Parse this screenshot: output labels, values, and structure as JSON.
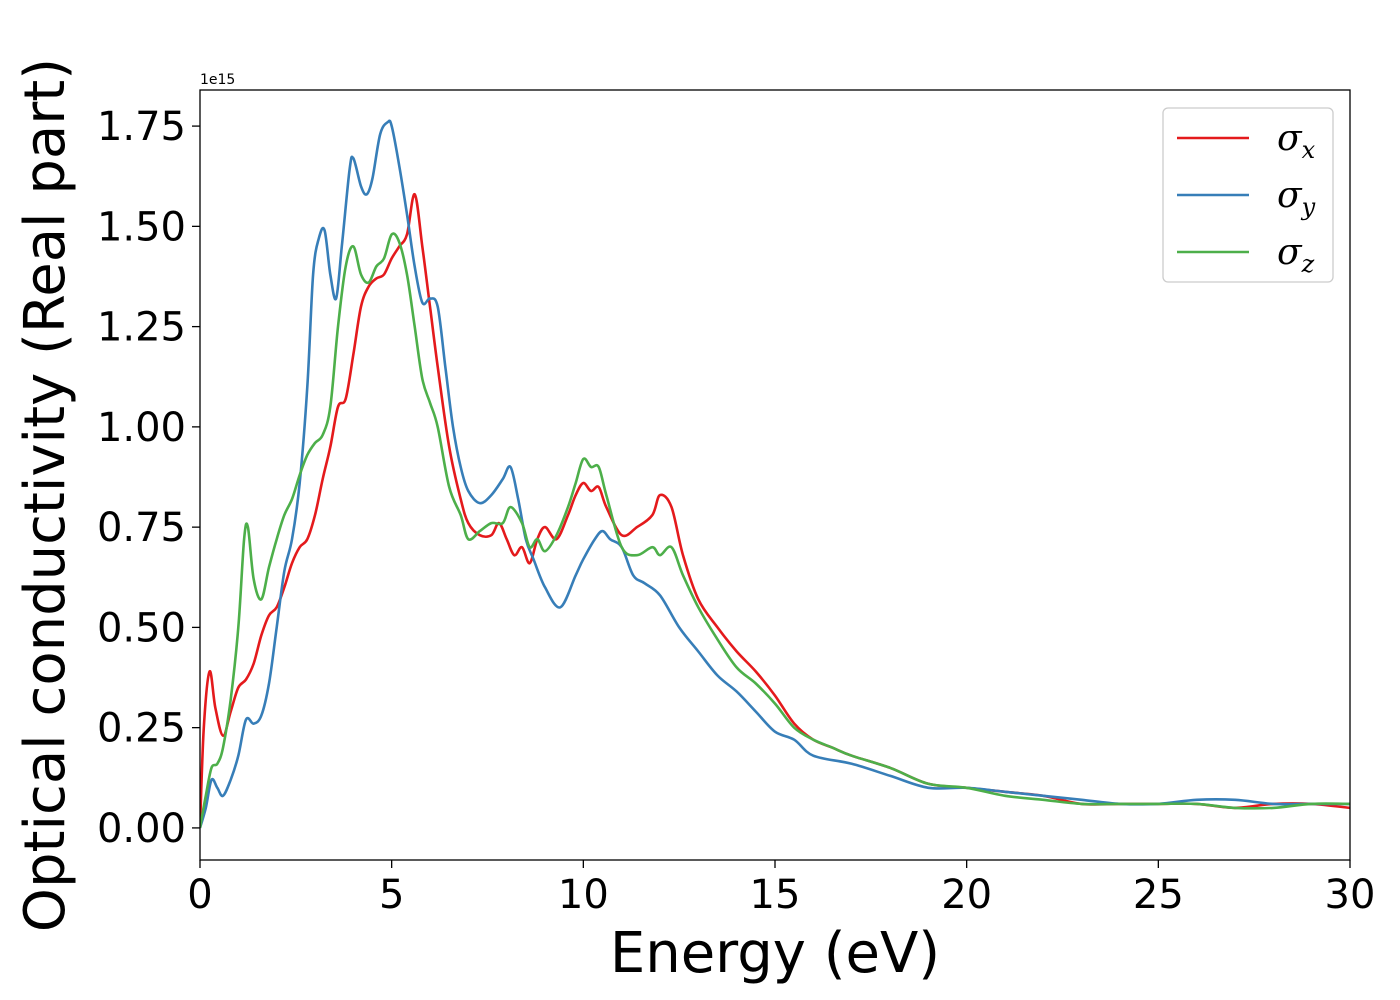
{
  "chart_data": {
    "type": "line",
    "xlabel": "Energy (eV)",
    "ylabel": "Optical conductivity (Real part)",
    "y_offset_label": "1e15",
    "xlim": [
      0,
      30
    ],
    "ylim": [
      -0.08,
      1.84
    ],
    "grid": false,
    "legend_position": "top-right",
    "x_ticks": [
      0,
      5,
      10,
      15,
      20,
      25,
      30
    ],
    "x_tick_labels": [
      "0",
      "5",
      "10",
      "15",
      "20",
      "25",
      "30"
    ],
    "y_ticks": [
      0,
      0.25,
      0.5,
      0.75,
      1.0,
      1.25,
      1.5,
      1.75
    ],
    "y_tick_labels": [
      "0.00",
      "0.25",
      "0.50",
      "0.75",
      "1.00",
      "1.25",
      "1.50",
      "1.75"
    ],
    "series": [
      {
        "name": "σx",
        "legend_base": "σ",
        "legend_sub": "x",
        "color": "#e41a1c",
        "x": [
          0,
          0.1,
          0.25,
          0.4,
          0.6,
          0.8,
          1.0,
          1.2,
          1.4,
          1.6,
          1.8,
          2.0,
          2.2,
          2.4,
          2.6,
          2.8,
          3.0,
          3.2,
          3.4,
          3.6,
          3.8,
          4.0,
          4.2,
          4.4,
          4.6,
          4.8,
          5.0,
          5.2,
          5.4,
          5.6,
          5.8,
          6.0,
          6.2,
          6.5,
          6.8,
          7.0,
          7.3,
          7.6,
          7.8,
          8.0,
          8.2,
          8.4,
          8.6,
          8.8,
          9.0,
          9.3,
          9.6,
          9.8,
          10.0,
          10.2,
          10.4,
          10.6,
          11.0,
          11.4,
          11.8,
          12.0,
          12.3,
          12.6,
          13.0,
          13.5,
          14.0,
          14.5,
          15.0,
          15.5,
          16.0,
          16.5,
          17.0,
          18.0,
          19.0,
          20.0,
          21.0,
          22.0,
          23.0,
          24.0,
          25.0,
          26.0,
          27.0,
          28.0,
          29.0,
          30.0
        ],
        "values": [
          0.0,
          0.25,
          0.39,
          0.3,
          0.23,
          0.29,
          0.35,
          0.37,
          0.41,
          0.48,
          0.53,
          0.55,
          0.6,
          0.66,
          0.7,
          0.72,
          0.78,
          0.87,
          0.95,
          1.05,
          1.07,
          1.18,
          1.3,
          1.35,
          1.37,
          1.38,
          1.42,
          1.45,
          1.48,
          1.58,
          1.45,
          1.3,
          1.15,
          0.95,
          0.82,
          0.76,
          0.73,
          0.73,
          0.76,
          0.72,
          0.68,
          0.7,
          0.66,
          0.72,
          0.75,
          0.72,
          0.78,
          0.83,
          0.86,
          0.84,
          0.85,
          0.8,
          0.73,
          0.75,
          0.78,
          0.83,
          0.8,
          0.68,
          0.57,
          0.5,
          0.44,
          0.39,
          0.33,
          0.26,
          0.22,
          0.2,
          0.18,
          0.15,
          0.11,
          0.1,
          0.09,
          0.08,
          0.06,
          0.06,
          0.06,
          0.06,
          0.05,
          0.06,
          0.06,
          0.05
        ]
      },
      {
        "name": "σy",
        "legend_base": "σ",
        "legend_sub": "y",
        "color": "#377eb8",
        "x": [
          0,
          0.15,
          0.3,
          0.45,
          0.6,
          0.8,
          1.0,
          1.2,
          1.4,
          1.6,
          1.8,
          2.0,
          2.2,
          2.4,
          2.6,
          2.8,
          2.95,
          3.1,
          3.25,
          3.4,
          3.55,
          3.7,
          3.9,
          4.0,
          4.2,
          4.35,
          4.5,
          4.7,
          4.9,
          5.0,
          5.2,
          5.4,
          5.6,
          5.8,
          6.0,
          6.2,
          6.4,
          6.6,
          6.8,
          7.0,
          7.3,
          7.6,
          7.9,
          8.1,
          8.3,
          8.5,
          8.7,
          9.0,
          9.4,
          9.8,
          10.0,
          10.3,
          10.5,
          10.7,
          11.0,
          11.3,
          11.6,
          12.0,
          12.5,
          13.0,
          13.5,
          14.0,
          14.5,
          15.0,
          15.5,
          16.0,
          17.0,
          18.0,
          19.0,
          20.0,
          21.0,
          22.0,
          23.0,
          24.0,
          25.0,
          26.0,
          27.0,
          28.0,
          29.0,
          30.0
        ],
        "values": [
          0.0,
          0.05,
          0.12,
          0.1,
          0.08,
          0.12,
          0.18,
          0.27,
          0.26,
          0.28,
          0.36,
          0.5,
          0.64,
          0.72,
          0.86,
          1.1,
          1.38,
          1.47,
          1.49,
          1.38,
          1.32,
          1.45,
          1.64,
          1.67,
          1.6,
          1.58,
          1.62,
          1.73,
          1.76,
          1.75,
          1.65,
          1.53,
          1.4,
          1.31,
          1.32,
          1.3,
          1.15,
          1.0,
          0.9,
          0.84,
          0.81,
          0.83,
          0.87,
          0.9,
          0.82,
          0.72,
          0.67,
          0.6,
          0.55,
          0.63,
          0.67,
          0.72,
          0.74,
          0.72,
          0.7,
          0.63,
          0.61,
          0.58,
          0.5,
          0.44,
          0.38,
          0.34,
          0.29,
          0.24,
          0.22,
          0.18,
          0.16,
          0.13,
          0.1,
          0.1,
          0.09,
          0.08,
          0.07,
          0.06,
          0.06,
          0.07,
          0.07,
          0.06,
          0.06,
          0.06
        ]
      },
      {
        "name": "σz",
        "legend_base": "σ",
        "legend_sub": "z",
        "color": "#4daf4a",
        "x": [
          0,
          0.15,
          0.3,
          0.45,
          0.6,
          0.8,
          1.0,
          1.15,
          1.25,
          1.4,
          1.6,
          1.8,
          2.0,
          2.2,
          2.4,
          2.6,
          2.8,
          3.0,
          3.2,
          3.4,
          3.6,
          3.8,
          4.0,
          4.2,
          4.4,
          4.6,
          4.8,
          5.0,
          5.2,
          5.4,
          5.6,
          5.8,
          6.0,
          6.2,
          6.5,
          6.8,
          7.0,
          7.3,
          7.6,
          7.9,
          8.1,
          8.4,
          8.6,
          8.8,
          9.0,
          9.3,
          9.6,
          9.8,
          10.0,
          10.2,
          10.4,
          10.6,
          11.0,
          11.4,
          11.8,
          12.0,
          12.3,
          12.6,
          13.0,
          13.5,
          14.0,
          14.5,
          15.0,
          15.5,
          16.0,
          16.5,
          17.0,
          18.0,
          19.0,
          20.0,
          21.0,
          22.0,
          23.0,
          24.0,
          25.0,
          26.0,
          27.0,
          28.0,
          29.0,
          30.0
        ],
        "values": [
          0.0,
          0.08,
          0.15,
          0.16,
          0.2,
          0.32,
          0.5,
          0.72,
          0.75,
          0.62,
          0.57,
          0.65,
          0.72,
          0.78,
          0.82,
          0.88,
          0.93,
          0.96,
          0.98,
          1.05,
          1.25,
          1.4,
          1.45,
          1.38,
          1.36,
          1.4,
          1.42,
          1.48,
          1.46,
          1.38,
          1.25,
          1.12,
          1.06,
          1.0,
          0.85,
          0.78,
          0.72,
          0.74,
          0.76,
          0.76,
          0.8,
          0.76,
          0.7,
          0.72,
          0.69,
          0.73,
          0.8,
          0.86,
          0.92,
          0.9,
          0.9,
          0.83,
          0.7,
          0.68,
          0.7,
          0.68,
          0.7,
          0.63,
          0.55,
          0.47,
          0.4,
          0.36,
          0.31,
          0.25,
          0.22,
          0.2,
          0.18,
          0.15,
          0.11,
          0.1,
          0.08,
          0.07,
          0.06,
          0.06,
          0.06,
          0.06,
          0.05,
          0.05,
          0.06,
          0.06
        ]
      }
    ]
  }
}
